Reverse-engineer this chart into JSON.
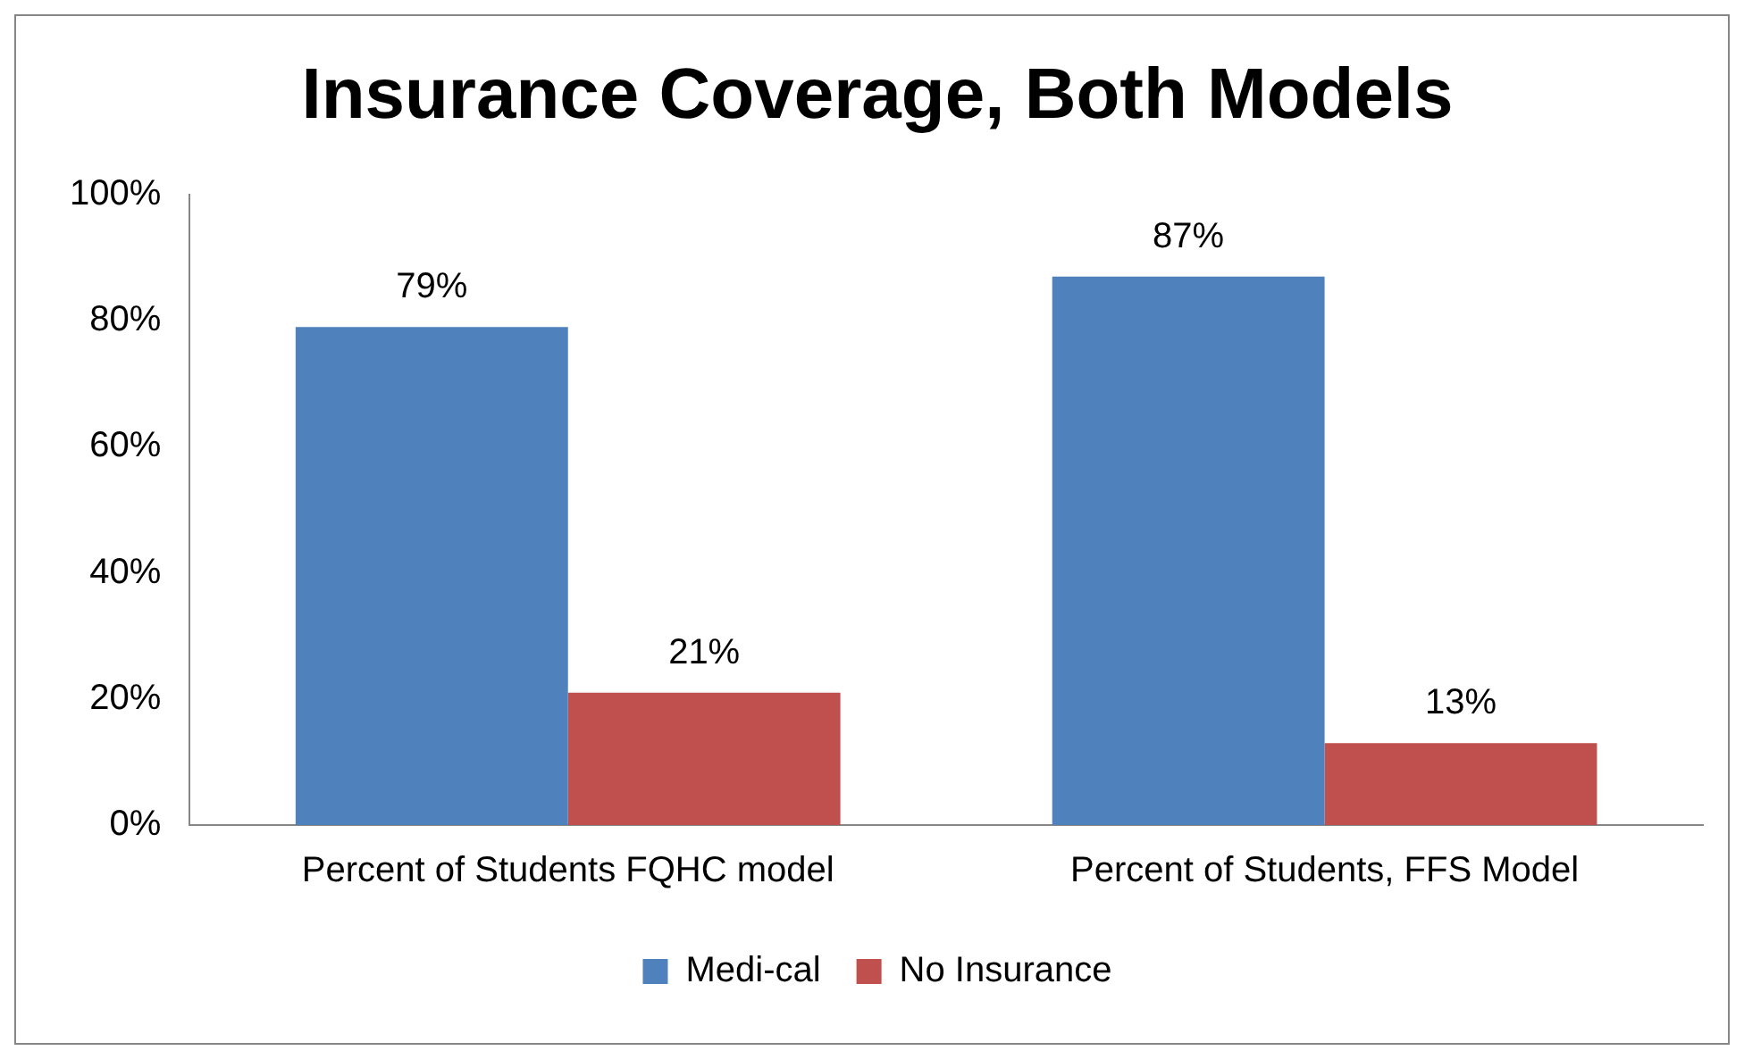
{
  "chart_data": {
    "type": "bar",
    "title": "Insurance Coverage, Both Models",
    "categories": [
      "Percent of Students FQHC model",
      "Percent of Students, FFS Model"
    ],
    "series": [
      {
        "name": "Medi-cal",
        "color": "#4f81bd",
        "values": [
          79,
          87
        ],
        "value_labels": [
          "79%",
          "87%"
        ]
      },
      {
        "name": "No Insurance",
        "color": "#c0504d",
        "values": [
          21,
          13
        ],
        "value_labels": [
          "21%",
          "13%"
        ]
      }
    ],
    "ylim": [
      0,
      100
    ],
    "yticks": [
      {
        "value": 0,
        "label": "0%"
      },
      {
        "value": 20,
        "label": "20%"
      },
      {
        "value": 40,
        "label": "40%"
      },
      {
        "value": 60,
        "label": "60%"
      },
      {
        "value": 80,
        "label": "80%"
      },
      {
        "value": 100,
        "label": "100%"
      }
    ],
    "grid": false,
    "legend": "bottom"
  }
}
